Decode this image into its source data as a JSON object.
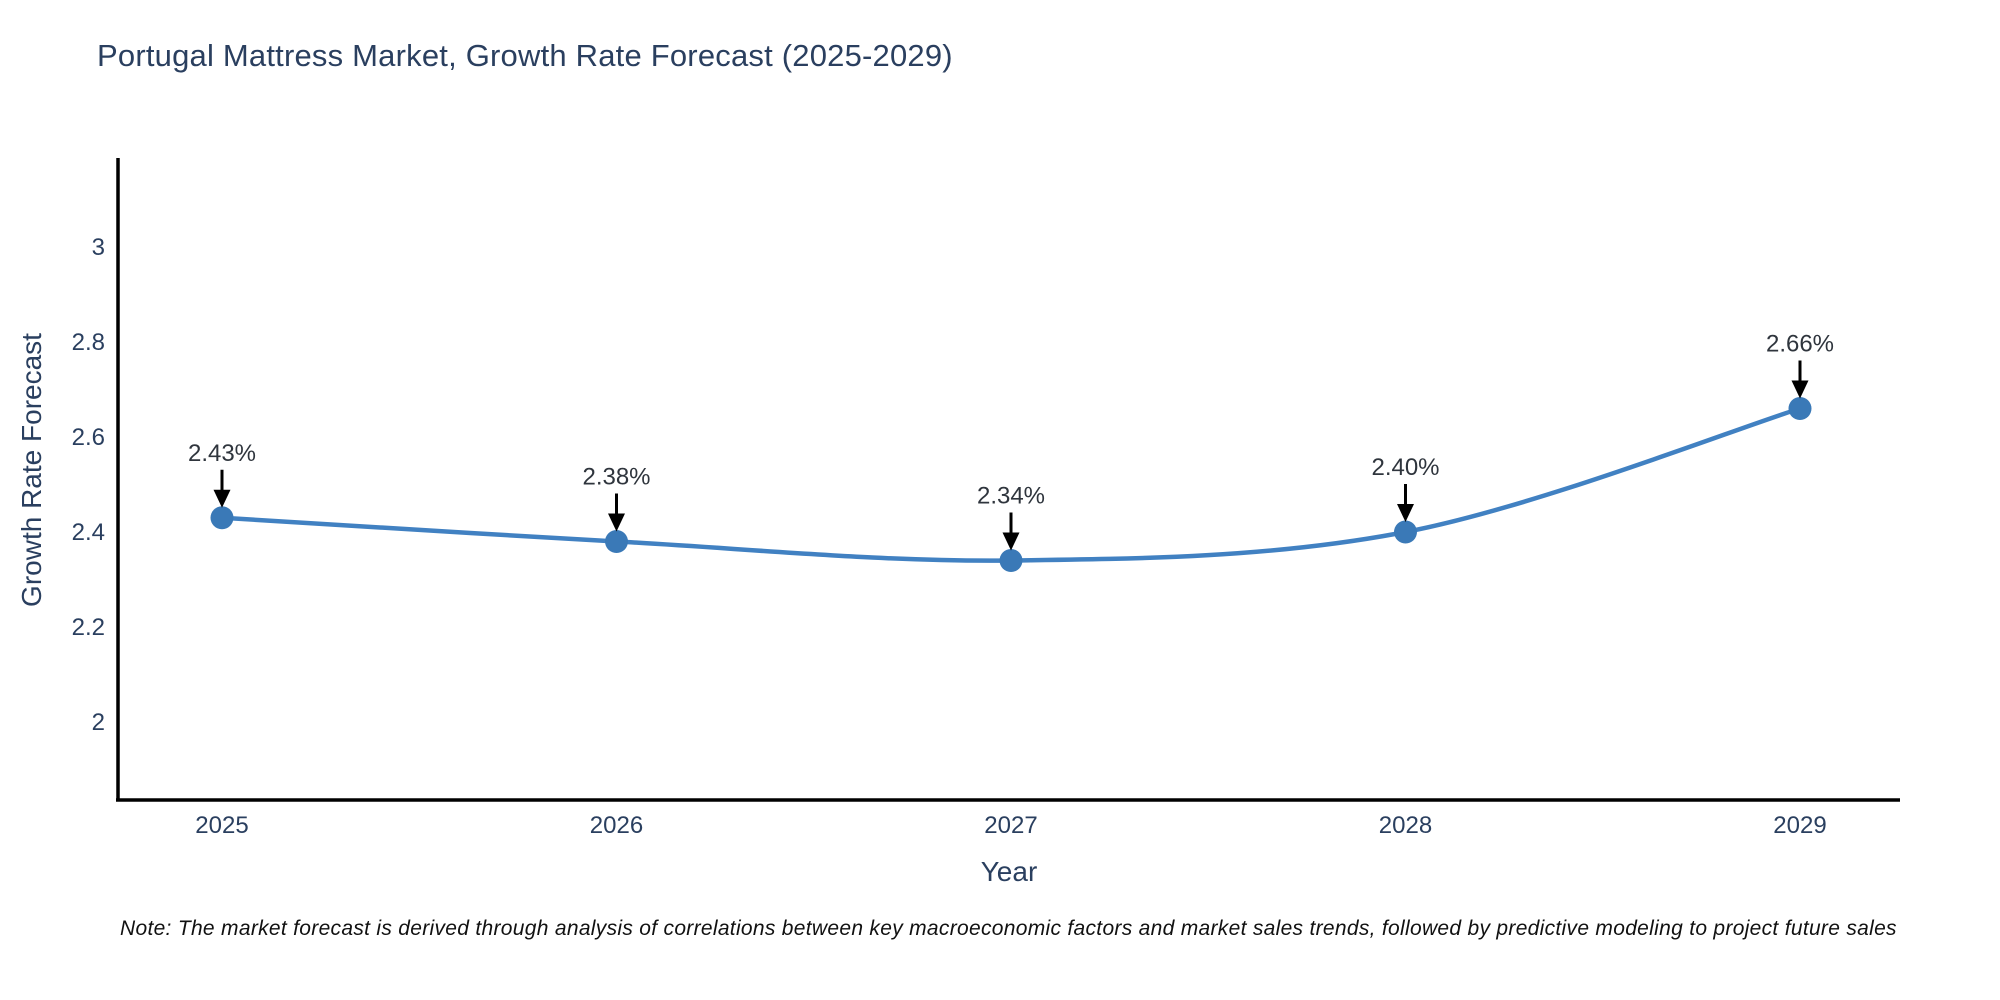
{
  "chart_data": {
    "type": "line",
    "title": "Portugal Mattress Market, Growth Rate Forecast (2025-2029)",
    "xlabel": "Year",
    "ylabel": "Growth Rate Forecast",
    "x": [
      2025,
      2026,
      2027,
      2028,
      2029
    ],
    "series": [
      {
        "name": "Growth Rate Forecast",
        "values": [
          2.43,
          2.38,
          2.34,
          2.4,
          2.66
        ],
        "point_labels": [
          "2.43%",
          "2.38%",
          "2.34%",
          "2.40%",
          "2.66%"
        ]
      }
    ],
    "xticks": [
      "2025",
      "2026",
      "2027",
      "2028",
      "2029"
    ],
    "ytick_values": [
      3,
      2.8,
      2.6,
      2.4,
      2.2,
      2
    ],
    "ytick_labels": [
      "3",
      "2.8",
      "2.6",
      "2.4",
      "2.2",
      "2"
    ],
    "ylim": [
      1.84,
      3.19
    ],
    "grid": false,
    "legend_position": "none",
    "line_shape": "spline",
    "annotation_arrows": true,
    "colors": {
      "line": "#4181c2",
      "marker": "#3a79b7",
      "axis": "#000000",
      "tick_text": "#2a3f5f",
      "annotation_text": "#2f353d",
      "arrow": "#000000",
      "title_text": "#2a3f5f"
    }
  },
  "note": "Note: The market forecast is derived through analysis of correlations between key macroeconomic factors and market sales trends, followed by predictive modeling to project future sales"
}
